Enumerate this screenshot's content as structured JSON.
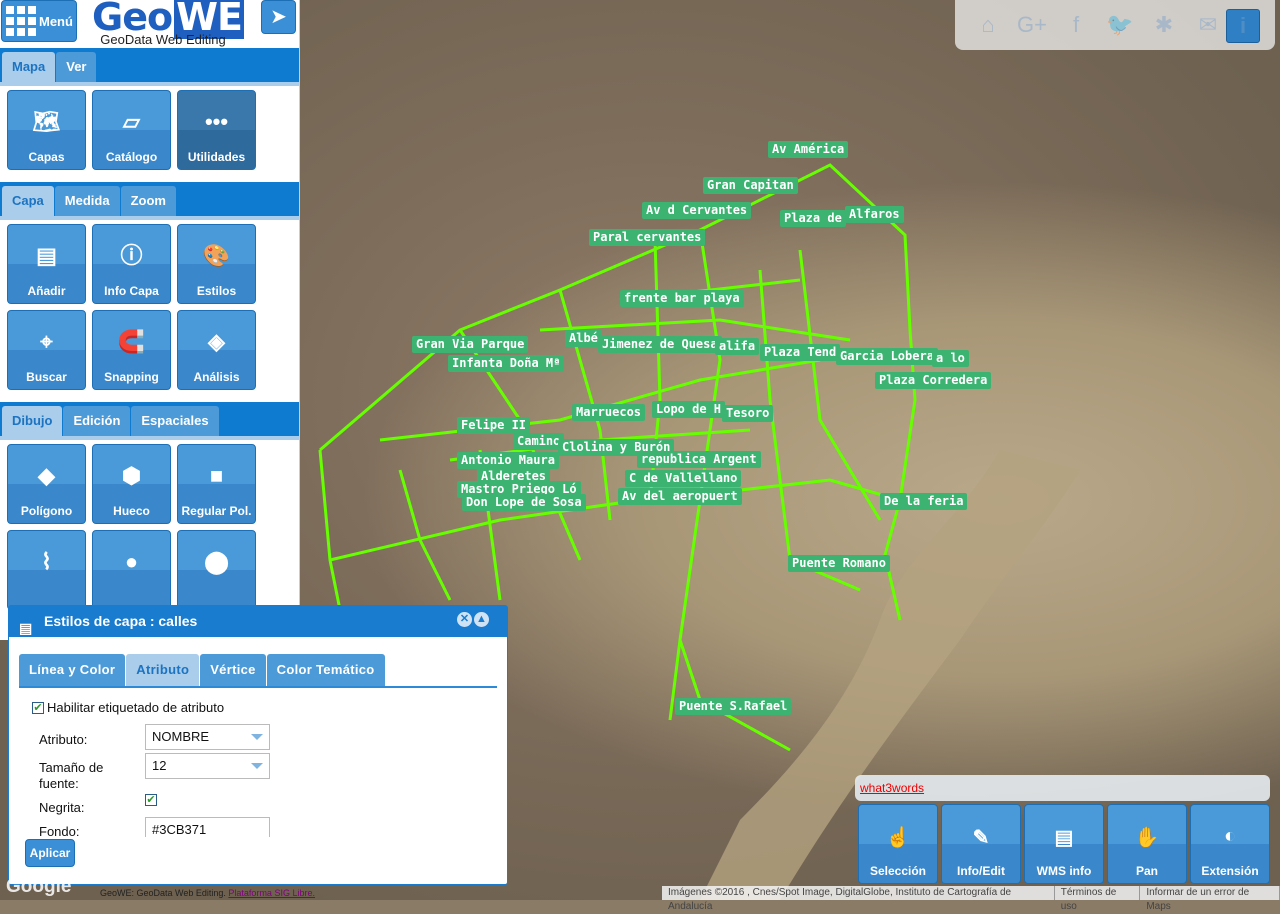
{
  "header": {
    "menu_label": "Menú",
    "logo_text_a": "Geo",
    "logo_text_b": "WE",
    "logo_subtitle": "GeoData Web Editing",
    "locate_icon": "navigation-arrow-icon"
  },
  "panels": [
    {
      "tabs": [
        "Mapa",
        "Ver"
      ],
      "active": 0,
      "tools": [
        "Capas",
        "Catálogo",
        "Utilidades"
      ]
    },
    {
      "tabs": [
        "Capa",
        "Medida",
        "Zoom"
      ],
      "active": 0,
      "tools": [
        "Añadir",
        "Info Capa",
        "Estilos",
        "Buscar",
        "Snapping",
        "Análisis"
      ]
    },
    {
      "tabs": [
        "Dibujo",
        "Edición",
        "Espaciales"
      ],
      "active": 0,
      "tools": [
        "Polígono",
        "Hueco",
        "Regular Pol.",
        "",
        "",
        ""
      ]
    }
  ],
  "social": [
    "home-icon",
    "google-plus-icon",
    "facebook-icon",
    "twitter-icon",
    "bug-icon",
    "mail-icon"
  ],
  "dialog": {
    "title": "Estilos de capa : calles",
    "tabs": [
      "Línea y Color",
      "Atributo",
      "Vértice",
      "Color Temático"
    ],
    "active_tab": 1,
    "enable_label": "Habilitar etiquetado de atributo",
    "enable_checked": true,
    "attribute_label": "Atributo:",
    "attribute_value": "NOMBRE",
    "font_size_label": "Tamaño de fuente:",
    "font_size_value": "12",
    "bold_label": "Negrita:",
    "bold_checked": true,
    "background_label": "Fondo:",
    "background_value": "#3CB371",
    "apply_label": "Aplicar"
  },
  "map": {
    "label_color": "#3CB371",
    "line_color": "#66ff00",
    "labels": [
      "Av América",
      "Gran Capitan",
      "Av d Cervantes",
      "Plaza de",
      "Alfaros",
      "Paral cervantes",
      "frente bar playa",
      "Gran Via Parque",
      "Albé",
      "Jimenez de Quesa",
      "alifa",
      "Plaza Tend",
      "Garcia Lobera",
      "a lo",
      "Infanta Doña Mª",
      "Plaza Corredera",
      "Marruecos",
      "Lopo de H",
      "Tesoro",
      "Felipe II",
      "Camino",
      "Clolina y Burón",
      "Antonio Maura",
      "republica Argent",
      "Alderetes",
      "C de Vallellano",
      "Mastro Priego Ló",
      "Av del aeropuert",
      "Don Lope de Sosa",
      "De la feria",
      "Puente Romano",
      "Puente S.Rafael"
    ]
  },
  "w3w": "what3words",
  "bottom_tools": [
    "Selección",
    "Info/Edit",
    "WMS info",
    "Pan",
    "Extensión"
  ],
  "attribution": [
    "Imágenes ©2016 , Cnes/Spot Image, DigitalGlobe, Instituto de Cartografía de Andalucía",
    "Términos de uso",
    "Informar de un error de Maps"
  ],
  "footer": {
    "text": "GeoWE: GeoData Web Editing.",
    "link": "Plataforma SIG Libre.",
    "google": "Google"
  }
}
